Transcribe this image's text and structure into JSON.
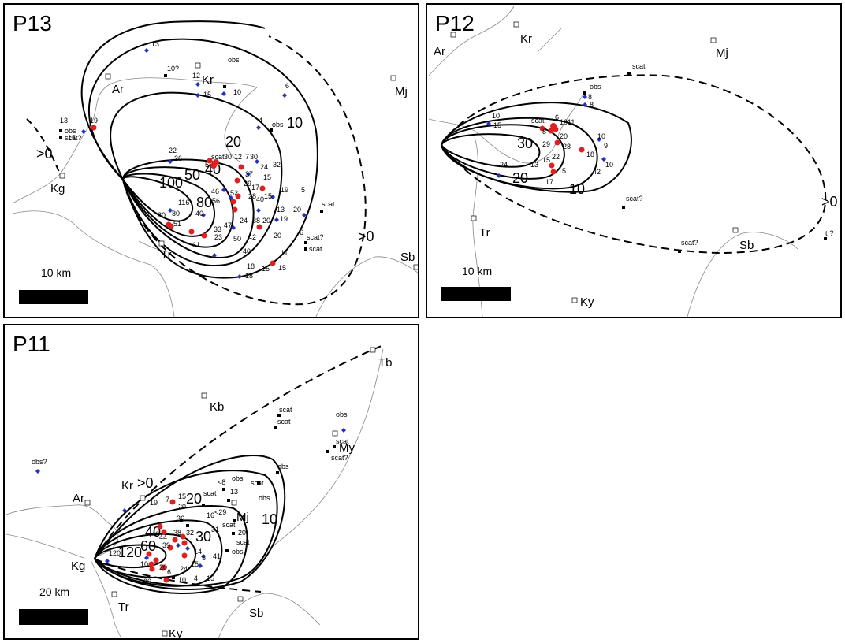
{
  "panels": [
    {
      "id": "p13",
      "title": "P13",
      "scale_label": "10 km",
      "towns": [
        {
          "label": "Ar"
        },
        {
          "label": "Kr"
        },
        {
          "label": "Mj"
        },
        {
          "label": "Kg"
        },
        {
          "label": "Tr"
        },
        {
          "label": "Sb"
        }
      ],
      "contours": [
        "100",
        "80",
        "50",
        "40",
        "20",
        "10",
        ">0",
        ">0"
      ],
      "samples_blue": [
        "13",
        "12",
        "15",
        "10",
        "6",
        "4",
        "13",
        "19",
        "15",
        "22",
        "26",
        "30",
        "12",
        "7",
        "30",
        "5",
        "37",
        "24",
        "15",
        "32",
        "29",
        "17",
        "40",
        "19",
        "5",
        "116",
        "56",
        "46",
        "52",
        "28",
        "15",
        "13",
        "20",
        "19",
        "80",
        "80",
        "51",
        "40",
        "24",
        "47",
        "38",
        "20",
        "42",
        "50",
        "33",
        "23",
        "61",
        "40",
        "20",
        "18",
        "18",
        "15",
        "11",
        "15",
        "6"
      ],
      "samples_black": [
        "10?",
        "obs",
        "obs",
        "obs",
        "scat?",
        "scat",
        "scat",
        "scat?",
        "scat"
      ],
      "samples_red_count": 16
    },
    {
      "id": "p12",
      "title": "P12",
      "scale_label": "10 km",
      "towns": [
        {
          "label": "Ar"
        },
        {
          "label": "Kr"
        },
        {
          "label": "Mj"
        },
        {
          "label": "Tr"
        },
        {
          "label": "Sb"
        },
        {
          "label": "Ky"
        }
      ],
      "contours": [
        "30",
        "20",
        "10",
        ">0"
      ],
      "samples_blue": [
        "10",
        "15",
        "scat",
        "8",
        "6",
        "10",
        "11",
        "20",
        "29",
        "28",
        "18",
        "10",
        "9",
        "22",
        "15",
        "15",
        "13",
        "24",
        "17",
        "42",
        "10",
        "8",
        "8"
      ],
      "samples_black": [
        "obs",
        "scat",
        "scat?",
        "scat?",
        "tr?"
      ],
      "samples_red_count": 8
    },
    {
      "id": "p11",
      "title": "P11",
      "scale_label": "20 km",
      "towns": [
        {
          "label": "Tb"
        },
        {
          "label": "Kb"
        },
        {
          "label": "My"
        },
        {
          "label": "Ar"
        },
        {
          "label": "Kr"
        },
        {
          "label": "Mj"
        },
        {
          "label": "Kg"
        },
        {
          "label": "Tr"
        },
        {
          "label": "Sb"
        },
        {
          "label": "Ky"
        }
      ],
      "contours": [
        "120",
        "60",
        "40",
        "30",
        "20",
        "10",
        ">0"
      ],
      "samples_blue": [
        "obs?",
        "obs",
        "19",
        "7",
        "15",
        "20",
        "16",
        "<29",
        "36",
        "40",
        "44",
        "39",
        "38",
        "32",
        "31",
        "120",
        "10",
        "20",
        "6",
        "24",
        "14",
        "5",
        "41",
        "15",
        "30",
        "10",
        "4",
        "15"
      ],
      "samples_black": [
        "scat",
        "scat",
        "scat",
        "scat?",
        "obs",
        "<8",
        "obs",
        "scat",
        "13",
        "scat",
        "obs",
        "scat",
        "20",
        "scat",
        "obs"
      ],
      "samples_red_count": 14
    }
  ]
}
